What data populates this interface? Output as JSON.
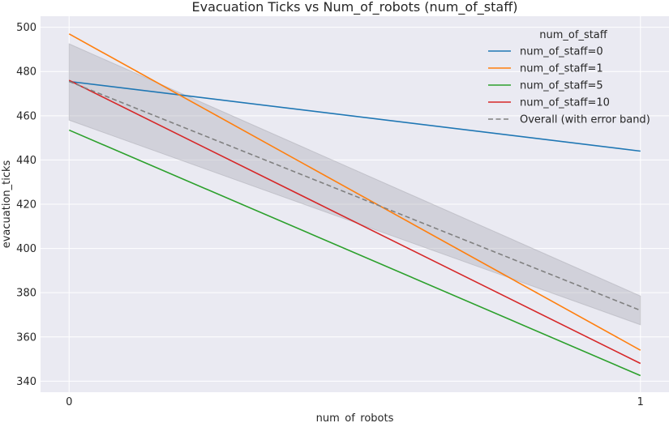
{
  "chart_data": {
    "type": "line",
    "title": "Evacuation Ticks vs Num_of_robots (num_of_staff)",
    "xlabel": "num_of_robots",
    "ylabel": "evacuation_ticks",
    "x": [
      0,
      1
    ],
    "x_tick_labels": [
      "0",
      "1"
    ],
    "xlim": [
      -0.05,
      1.05
    ],
    "ylim": [
      335,
      505
    ],
    "y_ticks": [
      340,
      360,
      380,
      400,
      420,
      440,
      460,
      480,
      500
    ],
    "y_tick_labels": [
      "340",
      "360",
      "380",
      "400",
      "420",
      "440",
      "460",
      "480",
      "500"
    ],
    "grid": true,
    "legend": {
      "title": "num_of_staff",
      "placement": "top-right"
    },
    "series": [
      {
        "name": "num_of_staff=0",
        "values": [
          475.5,
          444
        ],
        "color": "#1f77b4",
        "style": "solid"
      },
      {
        "name": "num_of_staff=1",
        "values": [
          497,
          354
        ],
        "color": "#ff7f0e",
        "style": "solid"
      },
      {
        "name": "num_of_staff=5",
        "values": [
          453.5,
          342.5
        ],
        "color": "#2ca02c",
        "style": "solid"
      },
      {
        "name": "num_of_staff=10",
        "values": [
          476,
          348
        ],
        "color": "#d62728",
        "style": "solid"
      },
      {
        "name": "Overall (with error band)",
        "values": [
          475.5,
          372
        ],
        "lower": [
          458,
          365.5
        ],
        "upper": [
          492.5,
          378.5
        ],
        "color": "#808080",
        "style": "dashed"
      }
    ]
  }
}
